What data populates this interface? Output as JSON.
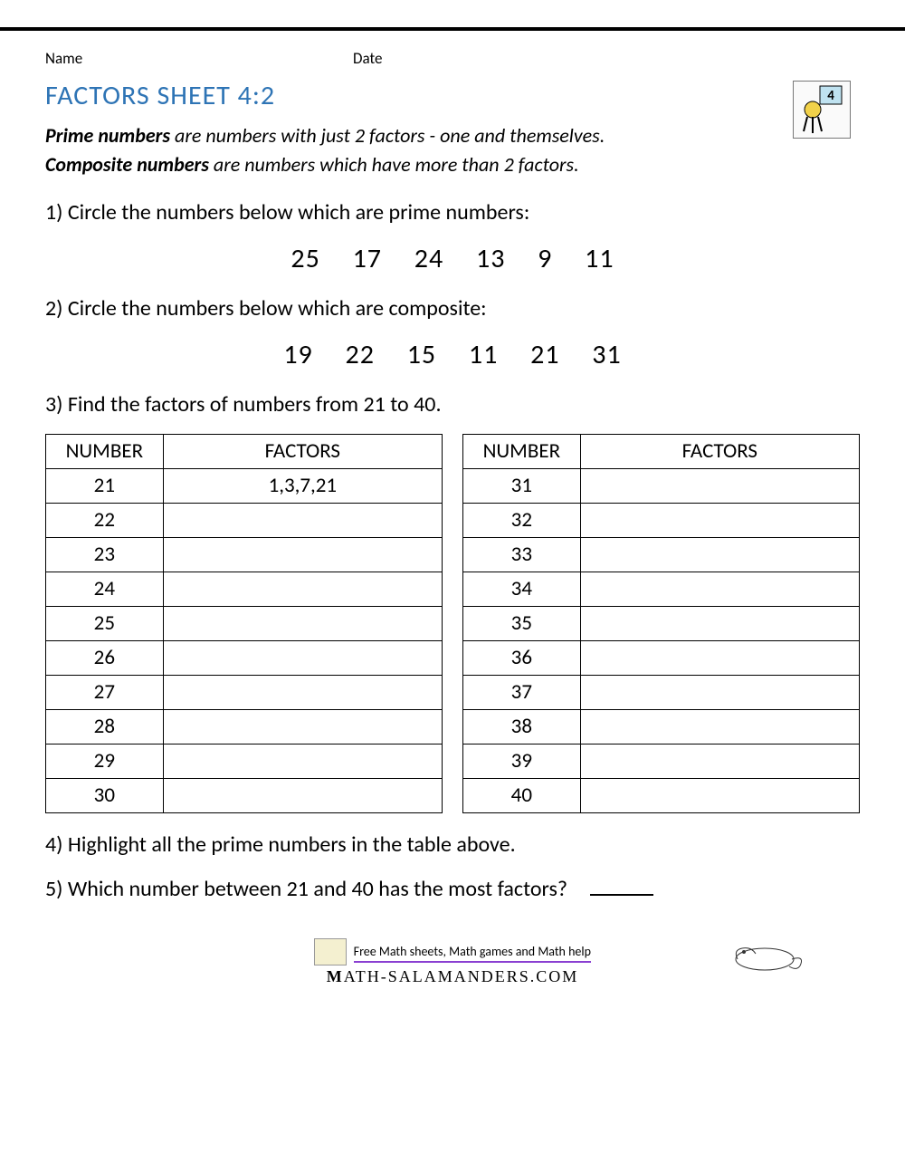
{
  "header": {
    "name_label": "Name",
    "date_label": "Date",
    "logo_badge": "4"
  },
  "title": "FACTORS SHEET 4:2",
  "intro": {
    "line1_term": "Prime numbers",
    "line1_rest": " are numbers with just 2 factors - one and themselves.",
    "line2_term": "Composite numbers",
    "line2_rest": " are numbers which have more than 2 factors."
  },
  "q1": {
    "text": "1) Circle the numbers below which are prime numbers:",
    "numbers": "25 17 24 13 9 11"
  },
  "q2": {
    "text": "2) Circle the numbers below which are composite:",
    "numbers": "19 22 15 11 21 31"
  },
  "q3": {
    "text": "3) Find the factors of numbers from 21 to 40.",
    "col_number": "NUMBER",
    "col_factors": "FACTORS",
    "left": [
      {
        "n": "21",
        "f": "1,3,7,21"
      },
      {
        "n": "22",
        "f": ""
      },
      {
        "n": "23",
        "f": ""
      },
      {
        "n": "24",
        "f": ""
      },
      {
        "n": "25",
        "f": ""
      },
      {
        "n": "26",
        "f": ""
      },
      {
        "n": "27",
        "f": ""
      },
      {
        "n": "28",
        "f": ""
      },
      {
        "n": "29",
        "f": ""
      },
      {
        "n": "30",
        "f": ""
      }
    ],
    "right": [
      {
        "n": "31",
        "f": ""
      },
      {
        "n": "32",
        "f": ""
      },
      {
        "n": "33",
        "f": ""
      },
      {
        "n": "34",
        "f": ""
      },
      {
        "n": "35",
        "f": ""
      },
      {
        "n": "36",
        "f": ""
      },
      {
        "n": "37",
        "f": ""
      },
      {
        "n": "38",
        "f": ""
      },
      {
        "n": "39",
        "f": ""
      },
      {
        "n": "40",
        "f": ""
      }
    ]
  },
  "q4": {
    "text": "4) Highlight all the prime numbers in the table above."
  },
  "q5": {
    "text": "5) Which number between 21 and 40 has the most factors?"
  },
  "footer": {
    "tagline": "Free Math sheets, Math games and Math help",
    "brand": "ATH-SALAMANDERS.COM"
  },
  "styles": {
    "title_color": "#2e74b5",
    "underline_color": "#8a3fd1",
    "border_color": "#000000",
    "body_font": "Calibri"
  }
}
